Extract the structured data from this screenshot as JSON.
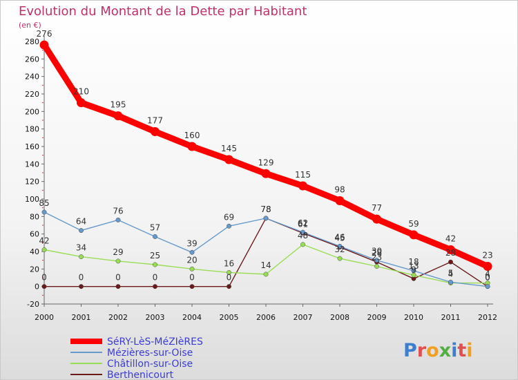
{
  "chart_data": {
    "type": "line",
    "title": "Evolution du Montant de la Dette par Habitant",
    "unit_label": "(en €)",
    "x": [
      2000,
      2001,
      2002,
      2003,
      2004,
      2005,
      2006,
      2007,
      2008,
      2009,
      2010,
      2011,
      2012
    ],
    "ylim": [
      -20,
      280
    ],
    "yticks": [
      -20,
      0,
      20,
      40,
      60,
      80,
      100,
      120,
      140,
      160,
      180,
      200,
      220,
      240,
      260,
      280
    ],
    "grid": false,
    "legend_position": "bottom-left",
    "series": [
      {
        "name": "SéRY-LèS-MéZIèRES",
        "color": "#ff0000",
        "values": [
          276,
          210,
          195,
          177,
          160,
          145,
          129,
          115,
          98,
          77,
          59,
          42,
          23
        ]
      },
      {
        "name": "Mézières-sur-Oise",
        "color": "#6699cc",
        "values": [
          85,
          64,
          76,
          57,
          39,
          69,
          78,
          62,
          46,
          30,
          18,
          5,
          0
        ]
      },
      {
        "name": "Châtillon-sur-Oise",
        "color": "#99dd55",
        "values": [
          42,
          34,
          29,
          25,
          20,
          16,
          14,
          48,
          32,
          23,
          13,
          4,
          4
        ]
      },
      {
        "name": "Berthenicourt",
        "color": "#6b1a1a",
        "values": [
          0,
          0,
          0,
          0,
          0,
          0,
          78,
          61,
          45,
          28,
          9,
          28,
          0
        ]
      }
    ]
  },
  "logo": {
    "text": "Proxiti"
  }
}
